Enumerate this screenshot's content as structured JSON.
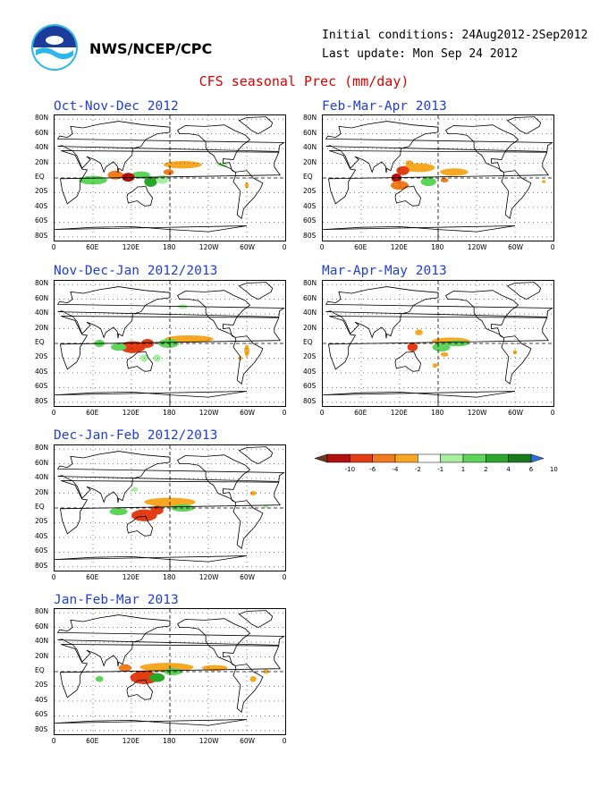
{
  "header": {
    "org": "NWS/NCEP/CPC",
    "initial_conditions": "Initial conditions: 24Aug2012-2Sep2012",
    "last_update": "Last update: Mon Sep 24 2012",
    "title": "CFS seasonal Prec (mm/day)"
  },
  "axes": {
    "lat_labels": [
      "80N",
      "60N",
      "40N",
      "20N",
      "EQ",
      "20S",
      "40S",
      "60S",
      "80S"
    ],
    "lon_labels": [
      "0",
      "60E",
      "120E",
      "180",
      "120W",
      "60W",
      "0"
    ]
  },
  "panels": [
    {
      "title": "Oct-Nov-Dec 2012"
    },
    {
      "title": "Feb-Mar-Apr 2013"
    },
    {
      "title": "Nov-Dec-Jan 2012/2013"
    },
    {
      "title": "Mar-Apr-May 2013"
    },
    {
      "title": "Dec-Jan-Feb 2012/2013"
    },
    {
      "title": "Jan-Feb-Mar 2013"
    }
  ],
  "colorbar": {
    "labels": [
      "-10",
      "-6",
      "-4",
      "-2",
      "-1",
      "1",
      "2",
      "4",
      "6",
      "10"
    ],
    "colors": [
      "#6b3a1e",
      "#b21010",
      "#e33d14",
      "#f07a1e",
      "#f7a823",
      "#ffffff",
      "#a8eea0",
      "#5fd45a",
      "#2aa62a",
      "#1c7a1c",
      "#2e6fdc"
    ]
  }
}
